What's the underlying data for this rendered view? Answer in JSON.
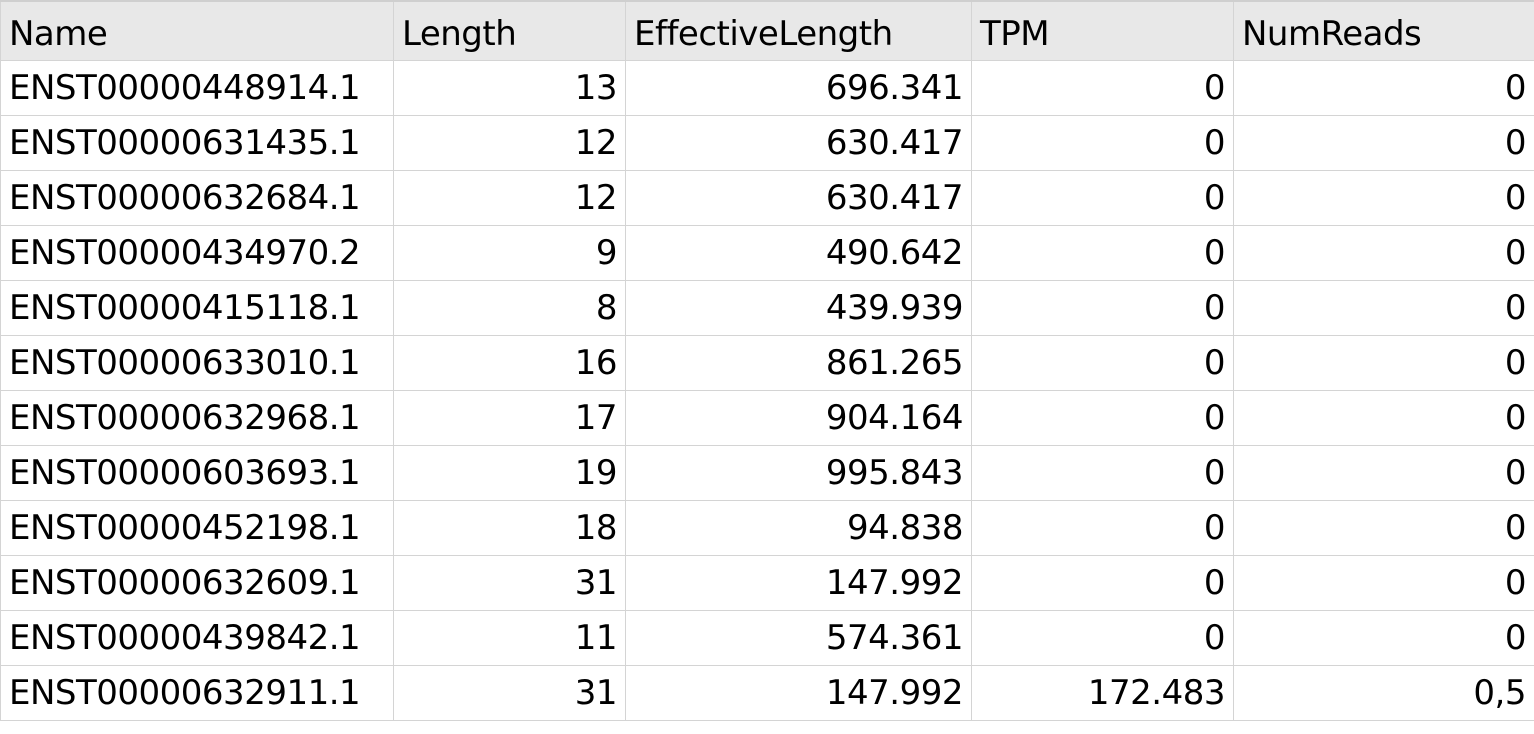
{
  "columns": [
    "Name",
    "Length",
    "EffectiveLength",
    "TPM",
    "NumReads"
  ],
  "rows": [
    [
      "ENST00000448914.1",
      "13",
      "696.341",
      "0",
      "0"
    ],
    [
      "ENST00000631435.1",
      "12",
      "630.417",
      "0",
      "0"
    ],
    [
      "ENST00000632684.1",
      "12",
      "630.417",
      "0",
      "0"
    ],
    [
      "ENST00000434970.2",
      "9",
      "490.642",
      "0",
      "0"
    ],
    [
      "ENST00000415118.1",
      "8",
      "439.939",
      "0",
      "0"
    ],
    [
      "ENST00000633010.1",
      "16",
      "861.265",
      "0",
      "0"
    ],
    [
      "ENST00000632968.1",
      "17",
      "904.164",
      "0",
      "0"
    ],
    [
      "ENST00000603693.1",
      "19",
      "995.843",
      "0",
      "0"
    ],
    [
      "ENST00000452198.1",
      "18",
      "94.838",
      "0",
      "0"
    ],
    [
      "ENST00000632609.1",
      "31",
      "147.992",
      "0",
      "0"
    ],
    [
      "ENST00000439842.1",
      "11",
      "574.361",
      "0",
      "0"
    ],
    [
      "ENST00000632911.1",
      "31",
      "147.992",
      "172.483",
      "0,5"
    ]
  ]
}
